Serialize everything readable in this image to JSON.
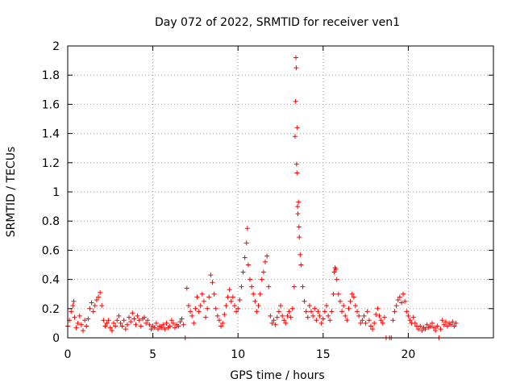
{
  "chart_data": {
    "type": "scatter",
    "title": "Day 072 of 2022, SRMTID for receiver ven1",
    "xlabel": "GPS time / hours",
    "ylabel": "SRMTID / TECUs",
    "xlim": [
      0,
      25
    ],
    "ylim": [
      0,
      2
    ],
    "xticks": [
      "0",
      "5",
      "10",
      "15",
      "20"
    ],
    "xtick_values": [
      0,
      5,
      10,
      15,
      20
    ],
    "yticks": [
      "0",
      "0.2",
      "0.4",
      "0.6",
      "0.8",
      "1",
      "1.2",
      "1.4",
      "1.6",
      "1.8",
      "2"
    ],
    "ytick_values": [
      0,
      0.2,
      0.4,
      0.6,
      0.8,
      1.0,
      1.2,
      1.4,
      1.6,
      1.8,
      2.0
    ],
    "grid": true,
    "marker": "+",
    "color": "#ff0000",
    "series": [
      {
        "name": "SRMTID",
        "points": [
          [
            0.0,
            0.08
          ],
          [
            0.1,
            0.12
          ],
          [
            0.2,
            0.18
          ],
          [
            0.3,
            0.22
          ],
          [
            0.35,
            0.25
          ],
          [
            0.4,
            0.14
          ],
          [
            0.5,
            0.07
          ],
          [
            0.6,
            0.1
          ],
          [
            0.7,
            0.15
          ],
          [
            0.8,
            0.09
          ],
          [
            0.9,
            0.05
          ],
          [
            1.0,
            0.12
          ],
          [
            1.1,
            0.08
          ],
          [
            1.2,
            0.13
          ],
          [
            1.3,
            0.2
          ],
          [
            1.4,
            0.24
          ],
          [
            1.5,
            0.18
          ],
          [
            1.6,
            0.22
          ],
          [
            1.7,
            0.26
          ],
          [
            1.8,
            0.28
          ],
          [
            1.9,
            0.31
          ],
          [
            2.0,
            0.22
          ],
          [
            2.1,
            0.12
          ],
          [
            2.2,
            0.08
          ],
          [
            2.3,
            0.1
          ],
          [
            2.4,
            0.12
          ],
          [
            2.5,
            0.07
          ],
          [
            2.6,
            0.05
          ],
          [
            2.7,
            0.1
          ],
          [
            2.8,
            0.08
          ],
          [
            2.9,
            0.12
          ],
          [
            3.0,
            0.15
          ],
          [
            3.1,
            0.1
          ],
          [
            3.2,
            0.08
          ],
          [
            3.3,
            0.12
          ],
          [
            3.4,
            0.06
          ],
          [
            3.5,
            0.09
          ],
          [
            3.6,
            0.14
          ],
          [
            3.7,
            0.11
          ],
          [
            3.8,
            0.17
          ],
          [
            3.9,
            0.13
          ],
          [
            4.0,
            0.09
          ],
          [
            4.1,
            0.15
          ],
          [
            4.2,
            0.12
          ],
          [
            4.3,
            0.08
          ],
          [
            4.4,
            0.13
          ],
          [
            4.5,
            0.14
          ],
          [
            4.6,
            0.1
          ],
          [
            4.7,
            0.12
          ],
          [
            4.8,
            0.09
          ],
          [
            4.9,
            0.06
          ],
          [
            5.0,
            0.08
          ],
          [
            5.1,
            0.07
          ],
          [
            5.2,
            0.1
          ],
          [
            5.3,
            0.06
          ],
          [
            5.4,
            0.08
          ],
          [
            5.5,
            0.07
          ],
          [
            5.6,
            0.09
          ],
          [
            5.7,
            0.06
          ],
          [
            5.8,
            0.1
          ],
          [
            5.9,
            0.07
          ],
          [
            6.0,
            0.08
          ],
          [
            6.1,
            0.12
          ],
          [
            6.2,
            0.1
          ],
          [
            6.3,
            0.07
          ],
          [
            6.4,
            0.09
          ],
          [
            6.5,
            0.08
          ],
          [
            6.6,
            0.11
          ],
          [
            6.7,
            0.13
          ],
          [
            6.8,
            0.09
          ],
          [
            6.9,
            0.0
          ],
          [
            7.0,
            0.34
          ],
          [
            7.1,
            0.22
          ],
          [
            7.2,
            0.18
          ],
          [
            7.3,
            0.15
          ],
          [
            7.4,
            0.1
          ],
          [
            7.5,
            0.2
          ],
          [
            7.6,
            0.28
          ],
          [
            7.7,
            0.18
          ],
          [
            7.8,
            0.22
          ],
          [
            7.9,
            0.3
          ],
          [
            8.0,
            0.25
          ],
          [
            8.1,
            0.14
          ],
          [
            8.2,
            0.2
          ],
          [
            8.3,
            0.28
          ],
          [
            8.4,
            0.43
          ],
          [
            8.5,
            0.38
          ],
          [
            8.6,
            0.3
          ],
          [
            8.7,
            0.2
          ],
          [
            8.8,
            0.15
          ],
          [
            8.9,
            0.12
          ],
          [
            9.0,
            0.08
          ],
          [
            9.1,
            0.1
          ],
          [
            9.2,
            0.16
          ],
          [
            9.3,
            0.22
          ],
          [
            9.4,
            0.28
          ],
          [
            9.5,
            0.33
          ],
          [
            9.6,
            0.25
          ],
          [
            9.7,
            0.28
          ],
          [
            9.8,
            0.22
          ],
          [
            9.9,
            0.18
          ],
          [
            10.0,
            0.2
          ],
          [
            10.1,
            0.26
          ],
          [
            10.2,
            0.35
          ],
          [
            10.3,
            0.45
          ],
          [
            10.4,
            0.55
          ],
          [
            10.5,
            0.65
          ],
          [
            10.55,
            0.75
          ],
          [
            10.6,
            0.5
          ],
          [
            10.7,
            0.4
          ],
          [
            10.8,
            0.35
          ],
          [
            10.9,
            0.3
          ],
          [
            11.0,
            0.25
          ],
          [
            11.1,
            0.18
          ],
          [
            11.2,
            0.22
          ],
          [
            11.3,
            0.3
          ],
          [
            11.4,
            0.4
          ],
          [
            11.5,
            0.45
          ],
          [
            11.6,
            0.52
          ],
          [
            11.7,
            0.56
          ],
          [
            11.8,
            0.35
          ],
          [
            11.9,
            0.15
          ],
          [
            12.0,
            0.1
          ],
          [
            12.1,
            0.12
          ],
          [
            12.2,
            0.09
          ],
          [
            12.3,
            0.14
          ],
          [
            12.4,
            0.18
          ],
          [
            12.5,
            0.22
          ],
          [
            12.6,
            0.15
          ],
          [
            12.7,
            0.12
          ],
          [
            12.8,
            0.1
          ],
          [
            12.9,
            0.15
          ],
          [
            13.0,
            0.18
          ],
          [
            13.1,
            0.14
          ],
          [
            13.2,
            0.2
          ],
          [
            13.3,
            0.35
          ],
          [
            13.35,
            1.38
          ],
          [
            13.38,
            1.62
          ],
          [
            13.4,
            1.92
          ],
          [
            13.42,
            1.85
          ],
          [
            13.44,
            1.19
          ],
          [
            13.46,
            1.13
          ],
          [
            13.48,
            1.44
          ],
          [
            13.5,
            0.9
          ],
          [
            13.52,
            0.85
          ],
          [
            13.55,
            0.93
          ],
          [
            13.58,
            0.76
          ],
          [
            13.6,
            0.69
          ],
          [
            13.65,
            0.57
          ],
          [
            13.7,
            0.5
          ],
          [
            13.8,
            0.35
          ],
          [
            13.9,
            0.25
          ],
          [
            14.0,
            0.18
          ],
          [
            14.1,
            0.14
          ],
          [
            14.2,
            0.22
          ],
          [
            14.3,
            0.18
          ],
          [
            14.4,
            0.15
          ],
          [
            14.5,
            0.2
          ],
          [
            14.6,
            0.12
          ],
          [
            14.7,
            0.18
          ],
          [
            14.8,
            0.15
          ],
          [
            14.9,
            0.1
          ],
          [
            15.0,
            0.13
          ],
          [
            15.1,
            0.18
          ],
          [
            15.2,
            0.22
          ],
          [
            15.3,
            0.15
          ],
          [
            15.4,
            0.12
          ],
          [
            15.5,
            0.18
          ],
          [
            15.6,
            0.3
          ],
          [
            15.65,
            0.45
          ],
          [
            15.7,
            0.48
          ],
          [
            15.75,
            0.47
          ],
          [
            15.8,
            0.4
          ],
          [
            15.9,
            0.3
          ],
          [
            16.0,
            0.25
          ],
          [
            16.1,
            0.18
          ],
          [
            16.2,
            0.22
          ],
          [
            16.3,
            0.15
          ],
          [
            16.4,
            0.12
          ],
          [
            16.5,
            0.2
          ],
          [
            16.6,
            0.25
          ],
          [
            16.7,
            0.3
          ],
          [
            16.8,
            0.28
          ],
          [
            16.9,
            0.22
          ],
          [
            17.0,
            0.18
          ],
          [
            17.1,
            0.15
          ],
          [
            17.2,
            0.1
          ],
          [
            17.3,
            0.12
          ],
          [
            17.4,
            0.15
          ],
          [
            17.5,
            0.1
          ],
          [
            17.6,
            0.18
          ],
          [
            17.7,
            0.12
          ],
          [
            17.8,
            0.08
          ],
          [
            17.9,
            0.06
          ],
          [
            18.0,
            0.1
          ],
          [
            18.1,
            0.16
          ],
          [
            18.2,
            0.2
          ],
          [
            18.3,
            0.15
          ],
          [
            18.4,
            0.12
          ],
          [
            18.5,
            0.1
          ],
          [
            18.6,
            0.14
          ],
          [
            18.7,
            0.0
          ],
          [
            18.9,
            0.0
          ],
          [
            19.0,
            0.0
          ],
          [
            19.1,
            0.12
          ],
          [
            19.2,
            0.18
          ],
          [
            19.3,
            0.22
          ],
          [
            19.4,
            0.26
          ],
          [
            19.5,
            0.28
          ],
          [
            19.6,
            0.24
          ],
          [
            19.7,
            0.3
          ],
          [
            19.8,
            0.25
          ],
          [
            19.9,
            0.18
          ],
          [
            20.0,
            0.15
          ],
          [
            20.1,
            0.12
          ],
          [
            20.2,
            0.1
          ],
          [
            20.3,
            0.14
          ],
          [
            20.4,
            0.1
          ],
          [
            20.5,
            0.08
          ],
          [
            20.6,
            0.06
          ],
          [
            20.7,
            0.08
          ],
          [
            20.8,
            0.05
          ],
          [
            20.9,
            0.07
          ],
          [
            21.0,
            0.06
          ],
          [
            21.1,
            0.09
          ],
          [
            21.2,
            0.07
          ],
          [
            21.3,
            0.08
          ],
          [
            21.4,
            0.1
          ],
          [
            21.5,
            0.07
          ],
          [
            21.6,
            0.05
          ],
          [
            21.7,
            0.08
          ],
          [
            21.8,
            0.0
          ],
          [
            21.9,
            0.06
          ],
          [
            22.0,
            0.12
          ],
          [
            22.1,
            0.09
          ],
          [
            22.2,
            0.11
          ],
          [
            22.3,
            0.08
          ],
          [
            22.4,
            0.1
          ],
          [
            22.5,
            0.09
          ],
          [
            22.6,
            0.11
          ],
          [
            22.7,
            0.08
          ],
          [
            22.8,
            0.1
          ]
        ]
      }
    ]
  }
}
